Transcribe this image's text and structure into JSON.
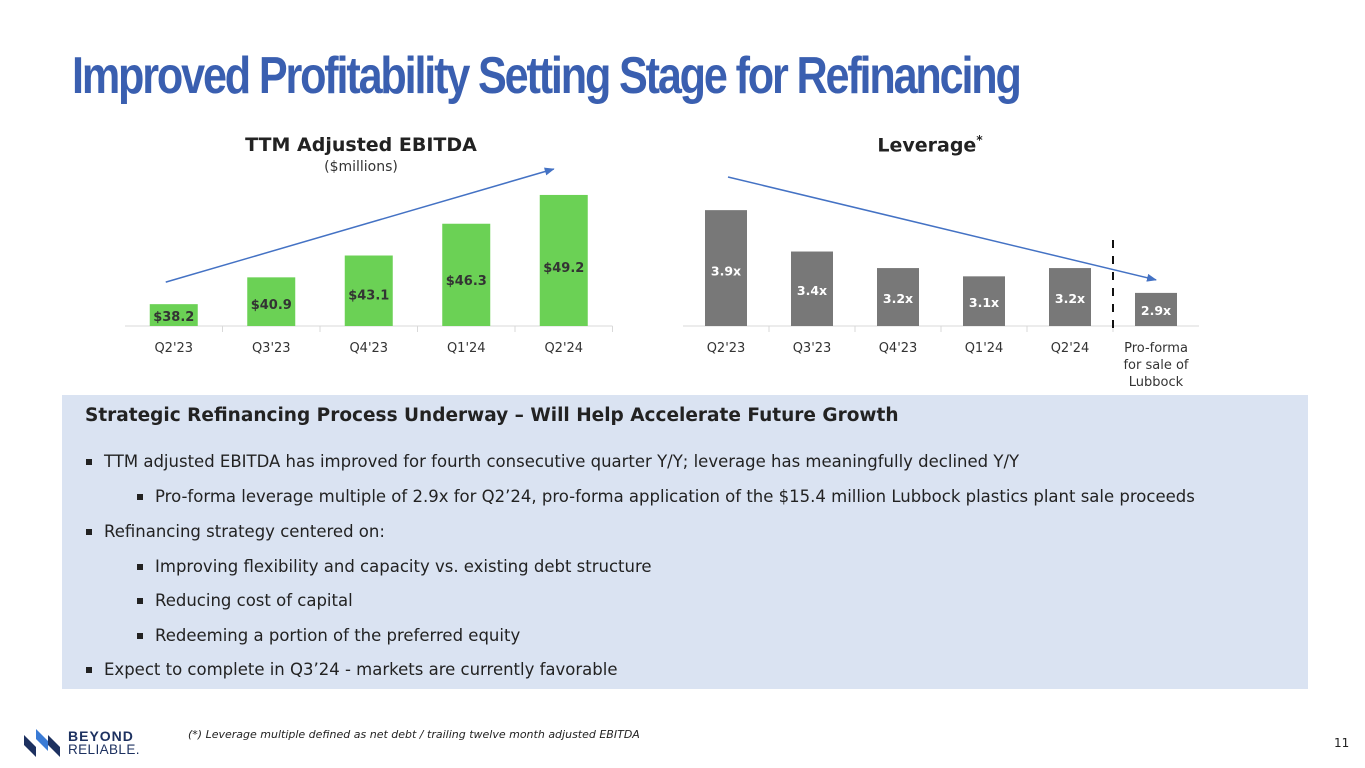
{
  "slide": {
    "title": "Improved Profitability Setting Stage for Refinancing",
    "page_number": "11"
  },
  "colors": {
    "title_blue": "#3a5fb0",
    "ebitda_green": "#6bd155",
    "leverage_gray": "#787878",
    "trend_arrow": "#4472c4",
    "panel_bg": "#dae3f2"
  },
  "chart_data": [
    {
      "type": "bar",
      "title": "TTM Adjusted EBITDA",
      "subtitle": "($millions)",
      "categories": [
        "Q2'23",
        "Q3'23",
        "Q4'23",
        "Q1'24",
        "Q2'24"
      ],
      "values": [
        38.2,
        40.9,
        43.1,
        46.3,
        49.2
      ],
      "data_labels": [
        "$38.2",
        "$40.9",
        "$43.1",
        "$46.3",
        "$49.2"
      ],
      "ylim": [
        36,
        50
      ],
      "annotations": [
        "upward trend arrow"
      ]
    },
    {
      "type": "bar",
      "title": "Leverage",
      "title_marker": "*",
      "categories": [
        "Q2'23",
        "Q3'23",
        "Q4'23",
        "Q1'24",
        "Q2'24",
        "Pro-forma for sale of Lubbock"
      ],
      "category_lines": [
        [
          "Q2'23"
        ],
        [
          "Q3'23"
        ],
        [
          "Q4'23"
        ],
        [
          "Q1'24"
        ],
        [
          "Q2'24"
        ],
        [
          "Pro-forma",
          "for sale of",
          "Lubbock"
        ]
      ],
      "values": [
        3.9,
        3.4,
        3.2,
        3.1,
        3.2,
        2.9
      ],
      "data_labels": [
        "3.9x",
        "3.4x",
        "3.2x",
        "3.1x",
        "3.2x",
        "2.9x"
      ],
      "ylim": [
        2.5,
        3.95
      ],
      "annotations": [
        "downward trend arrow",
        "dashed separator before pro-forma"
      ]
    }
  ],
  "panel": {
    "heading": "Strategic Refinancing Process Underway – Will Help Accelerate Future Growth",
    "bullets": [
      "TTM adjusted EBITDA has improved for fourth consecutive quarter Y/Y; leverage has meaningfully declined Y/Y",
      "Pro-forma leverage multiple of 2.9x for Q2’24, pro-forma application of the $15.4 million Lubbock plastics plant sale proceeds",
      "Refinancing strategy centered on:",
      "Improving flexibility and capacity vs. existing debt structure",
      "Reducing cost of capital",
      "Redeeming a portion of the preferred equity",
      "Expect to complete in Q3’24  - markets are currently favorable"
    ]
  },
  "footnote": "(*)    Leverage multiple defined as net debt / trailing twelve month adjusted EBITDA",
  "logo": {
    "line1": "BEYOND",
    "line2": "RELIABLE."
  }
}
